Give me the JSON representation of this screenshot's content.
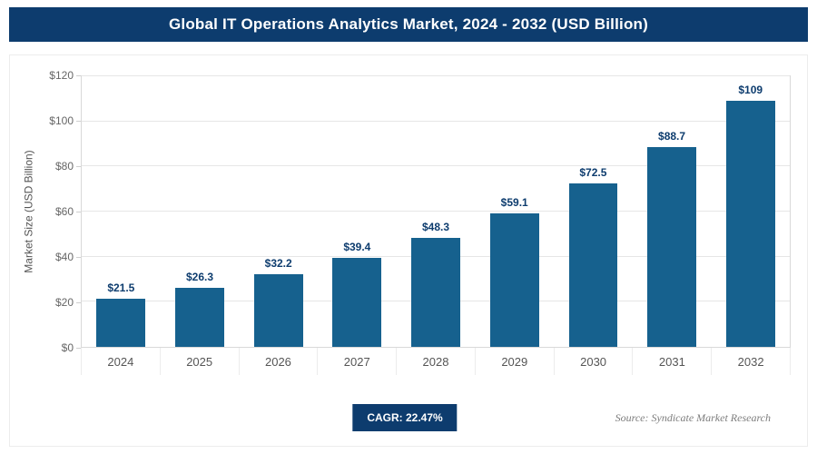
{
  "header": {
    "title": "Global IT Operations Analytics Market, 2024 - 2032 (USD Billion)",
    "bg_color": "#0d3c6e"
  },
  "chart_data": {
    "type": "bar",
    "title": "Global IT Operations Analytics Market, 2024 - 2032 (USD Billion)",
    "categories": [
      "2024",
      "2025",
      "2026",
      "2027",
      "2028",
      "2029",
      "2030",
      "2031",
      "2032"
    ],
    "values": [
      21.5,
      26.3,
      32.2,
      39.4,
      48.3,
      59.1,
      72.5,
      88.7,
      109
    ],
    "data_labels": [
      "$21.5",
      "$26.3",
      "$32.2",
      "$39.4",
      "$48.3",
      "$59.1",
      "$72.5",
      "$88.7",
      "$109"
    ],
    "xlabel": "",
    "ylabel": "Market Size (USD Billion)",
    "ylim": [
      0,
      120
    ],
    "ytick_step": 20,
    "ytick_labels": [
      "$0",
      "$20",
      "$40",
      "$60",
      "$80",
      "$100",
      "$120"
    ],
    "grid": true,
    "legend": false,
    "bar_color": "#16618e",
    "value_label_color": "#0d3c6e"
  },
  "footer": {
    "cagr_label": "CAGR: 22.47%",
    "source": "Source: Syndicate Market Research"
  }
}
